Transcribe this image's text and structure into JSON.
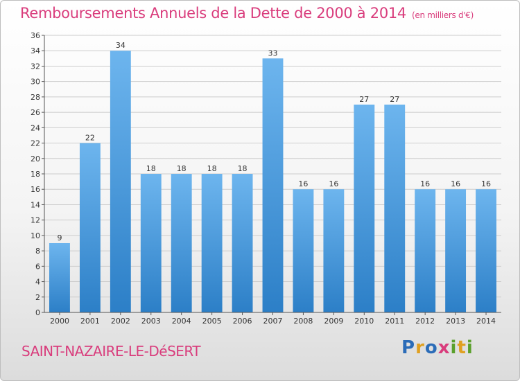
{
  "title": "Remboursements Annuels de la Dette de 2000 à 2014",
  "title_unit": "(en milliers d'€)",
  "place": "SAINT-NAZAIRE-LE-DéSERT",
  "logo": {
    "letters": [
      "P",
      "r",
      "o",
      "x",
      "i",
      "t",
      "i"
    ],
    "colors": [
      "#2b6cb8",
      "#e0a020",
      "#2b6cb8",
      "#d93c7c",
      "#5aa02c",
      "#e0a020",
      "#5aa02c"
    ]
  },
  "colors": {
    "bar_light": "#6db5ee",
    "bar_dark": "#2c7fc7",
    "grid": "#cccccc",
    "accent": "#d93c7c"
  },
  "chart_data": {
    "type": "bar",
    "categories": [
      "2000",
      "2001",
      "2002",
      "2003",
      "2004",
      "2005",
      "2006",
      "2007",
      "2008",
      "2009",
      "2010",
      "2011",
      "2012",
      "2013",
      "2014"
    ],
    "values": [
      9,
      22,
      34,
      18,
      18,
      18,
      18,
      33,
      16,
      16,
      27,
      27,
      16,
      16,
      16
    ],
    "value_labels": [
      "9",
      "22",
      "34",
      "18",
      "18",
      "18",
      "18",
      "33",
      "16",
      "16",
      "27",
      "27",
      "16",
      "16",
      "16"
    ],
    "yticks": [
      "0",
      "2",
      "4",
      "6",
      "8",
      "10",
      "12",
      "14",
      "16",
      "18",
      "20",
      "22",
      "24",
      "26",
      "28",
      "30",
      "32",
      "34",
      "36"
    ],
    "ylim": [
      0,
      36
    ],
    "grid": true
  }
}
